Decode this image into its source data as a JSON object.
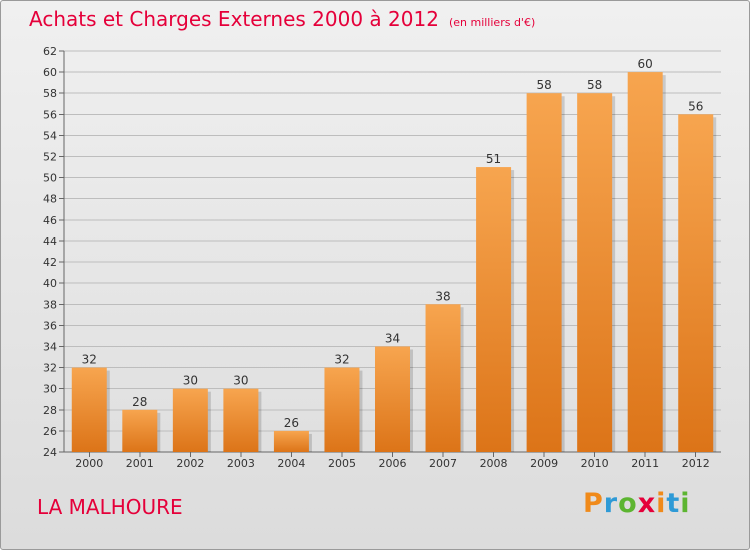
{
  "chart_data": {
    "type": "bar",
    "title": "Achats et Charges Externes 2000 à 2012",
    "subtitle": "(en milliers d'€)",
    "categories": [
      "2000",
      "2001",
      "2002",
      "2003",
      "2004",
      "2005",
      "2006",
      "2007",
      "2008",
      "2009",
      "2010",
      "2011",
      "2012"
    ],
    "values": [
      32,
      28,
      30,
      30,
      26,
      32,
      34,
      38,
      51,
      58,
      58,
      60,
      56
    ],
    "ylim": [
      24,
      62
    ],
    "yticks": [
      24,
      26,
      28,
      30,
      32,
      34,
      36,
      38,
      40,
      42,
      44,
      46,
      48,
      50,
      52,
      54,
      56,
      58,
      60,
      62
    ],
    "grid": true,
    "bar_color_top": "#f7a54f",
    "bar_color_bottom": "#dc7418"
  },
  "footer": {
    "commune": "LA MALHOURE",
    "logo_letters": [
      "P",
      "r",
      "o",
      "x",
      "i",
      "t",
      "i"
    ],
    "logo_colors": [
      "#f08a1a",
      "#2e9ad6",
      "#5cb531",
      "#e5003a",
      "#f08a1a",
      "#2e9ad6",
      "#5cb531"
    ]
  },
  "colors": {
    "accent": "#e5003a"
  }
}
